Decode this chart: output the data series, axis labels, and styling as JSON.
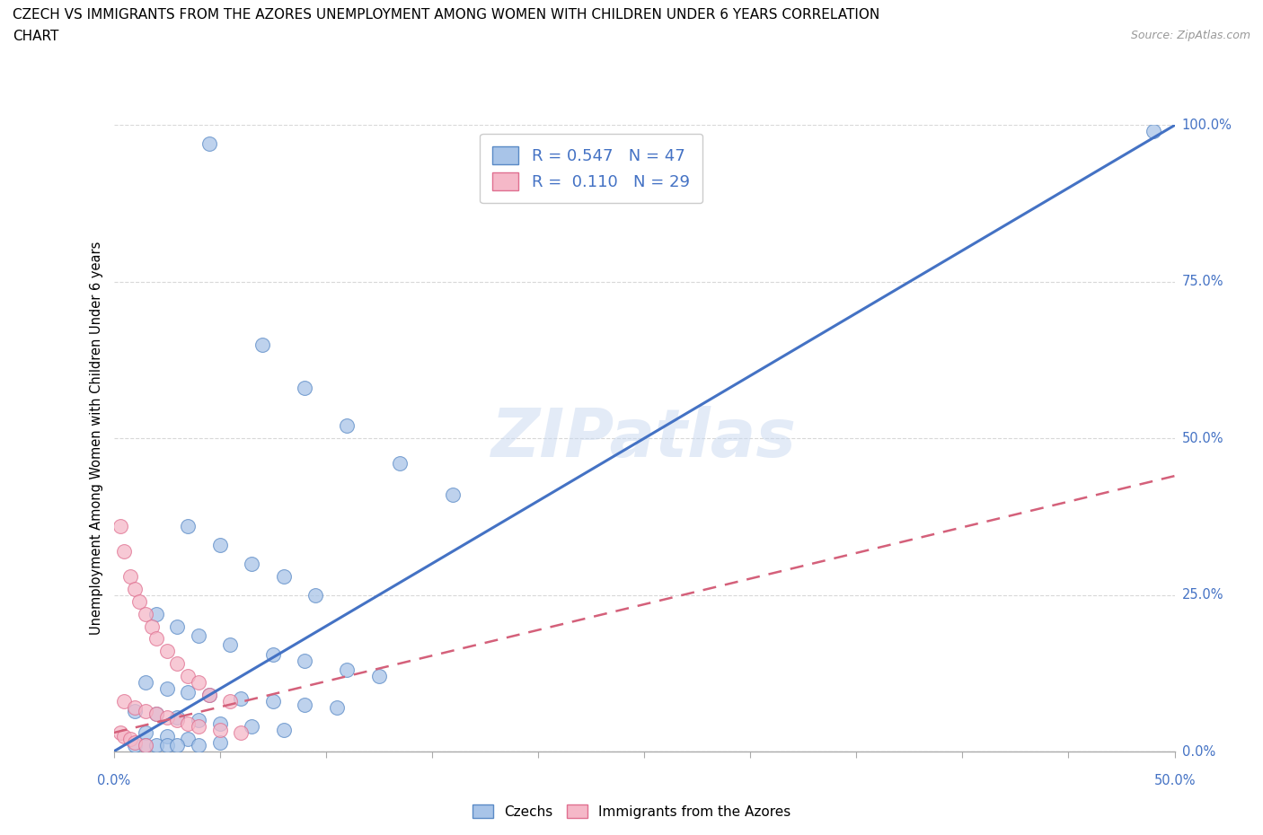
{
  "title_line1": "CZECH VS IMMIGRANTS FROM THE AZORES UNEMPLOYMENT AMONG WOMEN WITH CHILDREN UNDER 6 YEARS CORRELATION",
  "title_line2": "CHART",
  "source": "Source: ZipAtlas.com",
  "ylabel": "Unemployment Among Women with Children Under 6 years",
  "yticks": [
    "0.0%",
    "25.0%",
    "50.0%",
    "75.0%",
    "100.0%"
  ],
  "ytick_vals": [
    0.0,
    25.0,
    50.0,
    75.0,
    100.0
  ],
  "xlim": [
    0.0,
    50.0
  ],
  "ylim": [
    0.0,
    100.0
  ],
  "watermark": "ZIPatlas",
  "czech_color": "#a8c4e8",
  "azores_color": "#f5b8c8",
  "czech_edge_color": "#5a8ac6",
  "azores_edge_color": "#e07090",
  "czech_line_color": "#4472c4",
  "azores_line_color": "#d4607a",
  "scatter_alpha": 0.75,
  "marker_size": 130,
  "czechs_x": [
    4.5,
    22.0,
    7.0,
    9.0,
    11.0,
    13.5,
    16.0,
    3.5,
    5.0,
    6.5,
    8.0,
    9.5,
    2.0,
    3.0,
    4.0,
    5.5,
    7.5,
    9.0,
    11.0,
    12.5,
    1.5,
    2.5,
    3.5,
    4.5,
    6.0,
    7.5,
    9.0,
    10.5,
    1.0,
    2.0,
    3.0,
    4.0,
    5.0,
    6.5,
    8.0,
    1.5,
    2.5,
    3.5,
    5.0,
    1.0,
    1.5,
    2.0,
    2.5,
    3.0,
    4.0,
    49.0
  ],
  "czechs_y": [
    97.0,
    97.5,
    65.0,
    58.0,
    52.0,
    46.0,
    41.0,
    36.0,
    33.0,
    30.0,
    28.0,
    25.0,
    22.0,
    20.0,
    18.5,
    17.0,
    15.5,
    14.5,
    13.0,
    12.0,
    11.0,
    10.0,
    9.5,
    9.0,
    8.5,
    8.0,
    7.5,
    7.0,
    6.5,
    6.0,
    5.5,
    5.0,
    4.5,
    4.0,
    3.5,
    3.0,
    2.5,
    2.0,
    1.5,
    1.0,
    1.0,
    1.0,
    1.0,
    1.0,
    1.0,
    99.0
  ],
  "azores_x": [
    0.3,
    0.5,
    0.8,
    1.0,
    1.2,
    1.5,
    1.8,
    2.0,
    2.5,
    3.0,
    3.5,
    4.0,
    4.5,
    5.5,
    0.5,
    1.0,
    1.5,
    2.0,
    2.5,
    3.0,
    3.5,
    4.0,
    5.0,
    6.0,
    0.3,
    0.5,
    0.8,
    1.0,
    1.5
  ],
  "azores_y": [
    36.0,
    32.0,
    28.0,
    26.0,
    24.0,
    22.0,
    20.0,
    18.0,
    16.0,
    14.0,
    12.0,
    11.0,
    9.0,
    8.0,
    8.0,
    7.0,
    6.5,
    6.0,
    5.5,
    5.0,
    4.5,
    4.0,
    3.5,
    3.0,
    3.0,
    2.5,
    2.0,
    1.5,
    1.0
  ],
  "czech_line_x": [
    0.0,
    50.0
  ],
  "czech_line_y": [
    0.0,
    100.0
  ],
  "azores_line_x": [
    0.0,
    50.0
  ],
  "azores_line_y": [
    3.0,
    44.0
  ]
}
